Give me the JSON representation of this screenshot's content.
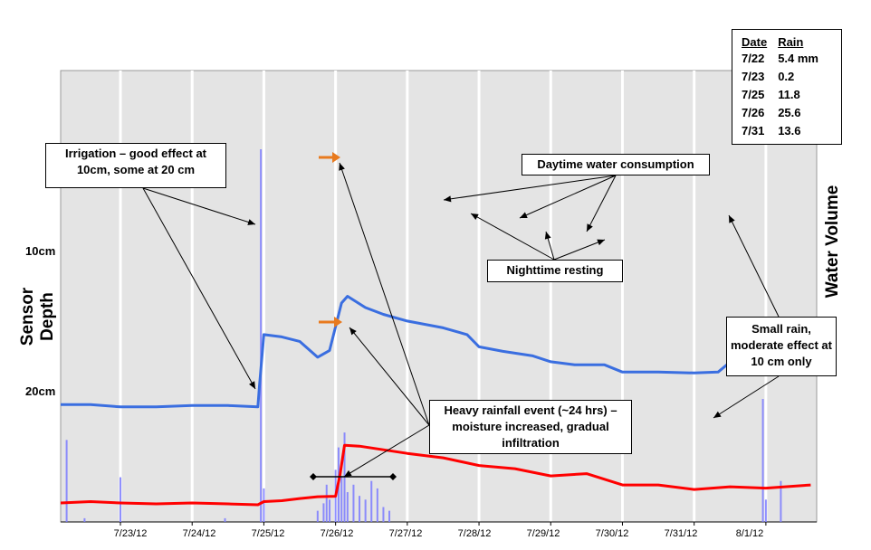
{
  "chart_data": {
    "type": "line",
    "title": "",
    "xlabel": "",
    "ylabel": "Sensor Depth",
    "y2label": "Water Volume",
    "x_ticks": [
      "7/23/12",
      "7/24/12",
      "7/25/12",
      "7/26/12",
      "7/27/12",
      "7/28/12",
      "7/29/12",
      "7/30/12",
      "7/31/12",
      "8/1/12"
    ],
    "y_tick_labels": [
      "10cm",
      "20cm"
    ],
    "xlim": [
      "2012-07-22 04:00",
      "2012-08-01 17:00"
    ],
    "grid": "vertical",
    "series": [
      {
        "color": "#3a6ee0",
        "points": [
          [
            "2012-07-22 04:00",
            0.74
          ],
          [
            "2012-07-22 14:00",
            0.74
          ],
          [
            "2012-07-23 00:00",
            0.745
          ],
          [
            "2012-07-23 12:00",
            0.745
          ],
          [
            "2012-07-24 00:00",
            0.742
          ],
          [
            "2012-07-24 12:00",
            0.742
          ],
          [
            "2012-07-24 22:00",
            0.745
          ],
          [
            "2012-07-24 22:30",
            0.7
          ],
          [
            "2012-07-25 00:00",
            0.585
          ],
          [
            "2012-07-25 06:00",
            0.59
          ],
          [
            "2012-07-25 12:00",
            0.6
          ],
          [
            "2012-07-25 18:00",
            0.635
          ],
          [
            "2012-07-25 22:00",
            0.62
          ],
          [
            "2012-07-26 02:00",
            0.515
          ],
          [
            "2012-07-26 04:00",
            0.5
          ],
          [
            "2012-07-26 10:00",
            0.525
          ],
          [
            "2012-07-26 16:00",
            0.54
          ],
          [
            "2012-07-27 00:00",
            0.555
          ],
          [
            "2012-07-27 12:00",
            0.57
          ],
          [
            "2012-07-27 20:00",
            0.585
          ],
          [
            "2012-07-28 00:00",
            0.612
          ],
          [
            "2012-07-28 08:00",
            0.622
          ],
          [
            "2012-07-28 18:00",
            0.632
          ],
          [
            "2012-07-29 00:00",
            0.645
          ],
          [
            "2012-07-29 08:00",
            0.652
          ],
          [
            "2012-07-29 18:00",
            0.652
          ],
          [
            "2012-07-30 00:00",
            0.668
          ],
          [
            "2012-07-30 12:00",
            0.668
          ],
          [
            "2012-07-31 00:00",
            0.67
          ],
          [
            "2012-07-31 08:00",
            0.668
          ],
          [
            "2012-07-31 14:00",
            0.635
          ],
          [
            "2012-07-31 18:00",
            0.612
          ],
          [
            "2012-08-01 00:00",
            0.605
          ],
          [
            "2012-08-01 08:00",
            0.615
          ],
          [
            "2012-08-01 15:00",
            0.622
          ]
        ]
      },
      {
        "color": "#ff0000",
        "points": [
          [
            "2012-07-22 04:00",
            0.958
          ],
          [
            "2012-07-22 14:00",
            0.955
          ],
          [
            "2012-07-23 00:00",
            0.958
          ],
          [
            "2012-07-23 12:00",
            0.96
          ],
          [
            "2012-07-24 00:00",
            0.958
          ],
          [
            "2012-07-24 12:00",
            0.96
          ],
          [
            "2012-07-24 22:00",
            0.962
          ],
          [
            "2012-07-25 00:00",
            0.955
          ],
          [
            "2012-07-25 06:00",
            0.953
          ],
          [
            "2012-07-25 12:00",
            0.948
          ],
          [
            "2012-07-25 18:00",
            0.944
          ],
          [
            "2012-07-26 00:00",
            0.943
          ],
          [
            "2012-07-26 01:30",
            0.895
          ],
          [
            "2012-07-26 03:00",
            0.83
          ],
          [
            "2012-07-26 08:00",
            0.832
          ],
          [
            "2012-07-26 16:00",
            0.84
          ],
          [
            "2012-07-27 00:00",
            0.848
          ],
          [
            "2012-07-27 12:00",
            0.858
          ],
          [
            "2012-07-28 00:00",
            0.875
          ],
          [
            "2012-07-28 12:00",
            0.882
          ],
          [
            "2012-07-29 00:00",
            0.898
          ],
          [
            "2012-07-29 12:00",
            0.893
          ],
          [
            "2012-07-30 00:00",
            0.918
          ],
          [
            "2012-07-30 12:00",
            0.918
          ],
          [
            "2012-07-31 00:00",
            0.928
          ],
          [
            "2012-07-31 12:00",
            0.922
          ],
          [
            "2012-08-01 00:00",
            0.925
          ],
          [
            "2012-08-01 15:00",
            0.918
          ]
        ]
      }
    ],
    "rain_bars": {
      "color": "#7b7bff",
      "points": [
        [
          "2012-07-22 06:00",
          0.22
        ],
        [
          "2012-07-22 12:00",
          0.01
        ],
        [
          "2012-07-23 00:00",
          0.12
        ],
        [
          "2012-07-24 11:00",
          0.01
        ],
        [
          "2012-07-24 23:00",
          1.0
        ],
        [
          "2012-07-25 00:00",
          0.09
        ],
        [
          "2012-07-25 18:00",
          0.03
        ],
        [
          "2012-07-25 20:00",
          0.05
        ],
        [
          "2012-07-25 21:00",
          0.1
        ],
        [
          "2012-07-25 22:00",
          0.06
        ],
        [
          "2012-07-26 00:00",
          0.14
        ],
        [
          "2012-07-26 01:00",
          0.2
        ],
        [
          "2012-07-26 02:00",
          0.12
        ],
        [
          "2012-07-26 03:00",
          0.24
        ],
        [
          "2012-07-26 04:00",
          0.08
        ],
        [
          "2012-07-26 06:00",
          0.1
        ],
        [
          "2012-07-26 08:00",
          0.07
        ],
        [
          "2012-07-26 10:00",
          0.06
        ],
        [
          "2012-07-26 12:00",
          0.11
        ],
        [
          "2012-07-26 14:00",
          0.09
        ],
        [
          "2012-07-26 16:00",
          0.04
        ],
        [
          "2012-07-26 18:00",
          0.03
        ],
        [
          "2012-07-31 23:00",
          0.33
        ],
        [
          "2012-08-01 00:00",
          0.06
        ],
        [
          "2012-08-01 05:00",
          0.11
        ]
      ]
    },
    "rain_table": {
      "headers": [
        "Date",
        "Rain"
      ],
      "rows": [
        [
          "7/22",
          "5.4 mm"
        ],
        [
          "7/23",
          "0.2"
        ],
        [
          "7/25",
          "11.8"
        ],
        [
          "7/26",
          "25.6"
        ],
        [
          "7/31",
          "13.6"
        ]
      ]
    },
    "annotations": [
      "Irrigation – good effect at 10cm, some at 20 cm",
      "Daytime water consumption",
      "Nighttime resting",
      "Heavy rainfall event (~24 hrs) – moisture increased, gradual infiltration",
      "Small rain, moderate effect at 10 cm only"
    ],
    "legend": "none"
  },
  "accent_colors": {
    "arrow": "#e87a1e",
    "plot_bg": "#e4e4e4",
    "grid": "#ffffff"
  }
}
